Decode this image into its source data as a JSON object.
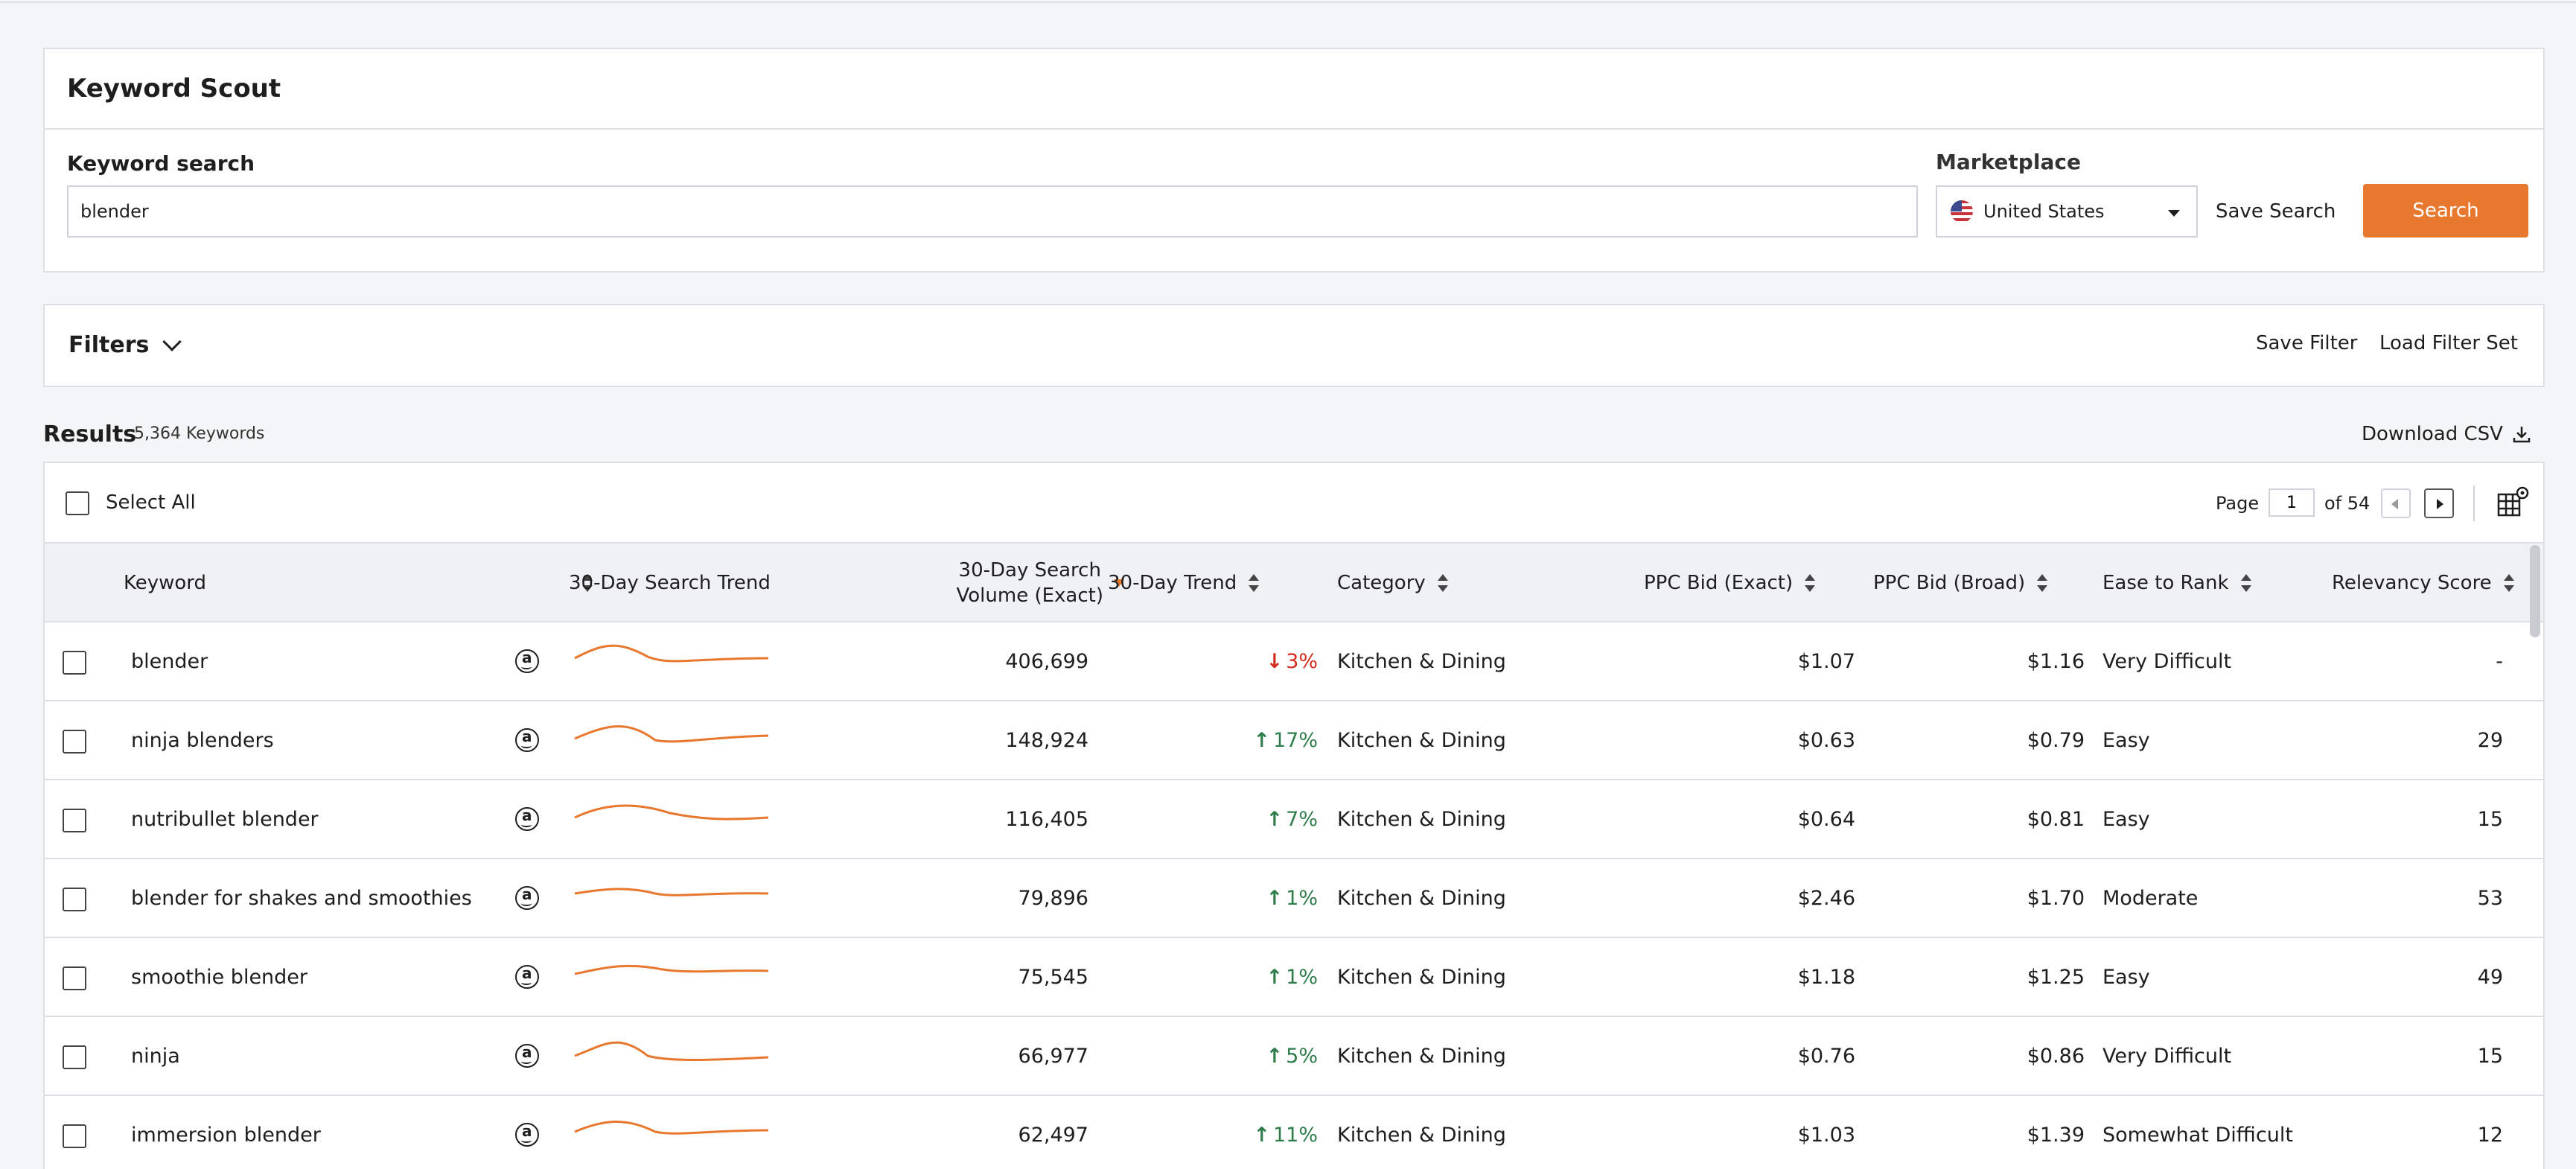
{
  "app": {
    "title": "Keyword Scout",
    "search": {
      "label": "Keyword search",
      "value": "blender",
      "marketplace_label": "Marketplace",
      "marketplace_value": "United States",
      "save_search_label": "Save Search",
      "search_button_label": "Search"
    },
    "filters": {
      "label": "Filters",
      "save_filter_label": "Save Filter",
      "load_filter_label": "Load Filter Set"
    },
    "results": {
      "title": "Results",
      "count": "5,364 Keywords",
      "download_label": "Download CSV",
      "select_all_label": "Select All",
      "page_label": "Page",
      "page_value": "1",
      "page_of": "of 54"
    },
    "columns": {
      "keyword": "Keyword",
      "search_trend": "30-Day Search Trend",
      "volume_line1": "30-Day Search",
      "volume_line2": "Volume (Exact)",
      "trend": "30-Day Trend",
      "category": "Category",
      "ppc_exact": "PPC Bid (Exact)",
      "ppc_broad": "PPC Bid (Broad)",
      "ease": "Ease to Rank",
      "relevancy": "Relevancy Score"
    },
    "rows": [
      {
        "keyword": "blender",
        "volume": "406,699",
        "trend": "3%",
        "trend_dir": "down",
        "category": "Kitchen & Dining",
        "ppc_exact": "$1.07",
        "ppc_broad": "$1.16",
        "ease": "Very Difficult",
        "relevancy": "-"
      },
      {
        "keyword": "ninja blenders",
        "volume": "148,924",
        "trend": "17%",
        "trend_dir": "up",
        "category": "Kitchen & Dining",
        "ppc_exact": "$0.63",
        "ppc_broad": "$0.79",
        "ease": "Easy",
        "relevancy": "29"
      },
      {
        "keyword": "nutribullet blender",
        "volume": "116,405",
        "trend": "7%",
        "trend_dir": "up",
        "category": "Kitchen & Dining",
        "ppc_exact": "$0.64",
        "ppc_broad": "$0.81",
        "ease": "Easy",
        "relevancy": "15"
      },
      {
        "keyword": "blender for shakes and smoothies",
        "volume": "79,896",
        "trend": "1%",
        "trend_dir": "up",
        "category": "Kitchen & Dining",
        "ppc_exact": "$2.46",
        "ppc_broad": "$1.70",
        "ease": "Moderate",
        "relevancy": "53"
      },
      {
        "keyword": "smoothie blender",
        "volume": "75,545",
        "trend": "1%",
        "trend_dir": "up",
        "category": "Kitchen & Dining",
        "ppc_exact": "$1.18",
        "ppc_broad": "$1.25",
        "ease": "Easy",
        "relevancy": "49"
      },
      {
        "keyword": "ninja",
        "volume": "66,977",
        "trend": "5%",
        "trend_dir": "up",
        "category": "Kitchen & Dining",
        "ppc_exact": "$0.76",
        "ppc_broad": "$0.86",
        "ease": "Very Difficult",
        "relevancy": "15"
      },
      {
        "keyword": "immersion blender",
        "volume": "62,497",
        "trend": "11%",
        "trend_dir": "up",
        "category": "Kitchen & Dining",
        "ppc_exact": "$1.03",
        "ppc_broad": "$1.39",
        "ease": "Somewhat Difficult",
        "relevancy": "12"
      }
    ],
    "colors": {
      "accent": "#e9782f",
      "trend_up": "#2e7d4a",
      "trend_down": "#d52b1e",
      "sparkline": "#e9782f"
    },
    "icons": {
      "row_marketplace": "amazon-icon",
      "download": "download-icon",
      "column_settings": "columns-settings-icon"
    }
  }
}
